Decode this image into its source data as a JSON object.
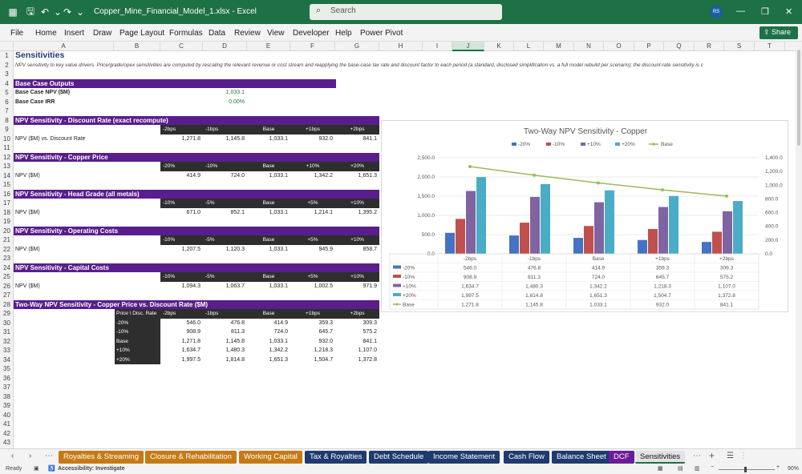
{
  "window": {
    "file_name": "Copper_Mine_Financial_Model_1.xlsx",
    "app_name": "Excel",
    "search_placeholder": "Search",
    "user_initials": "RS"
  },
  "ribbon": {
    "tabs": [
      "File",
      "Home",
      "Insert",
      "Draw",
      "Page Layout",
      "Formulas",
      "Data",
      "Review",
      "View",
      "Developer",
      "Help",
      "Power Pivot"
    ],
    "share_label": "Share"
  },
  "columns": [
    "A",
    "B",
    "C",
    "D",
    "E",
    "F",
    "G",
    "H",
    "I",
    "J",
    "K",
    "L",
    "M",
    "N",
    "O",
    "P",
    "Q",
    "R",
    "S",
    "T"
  ],
  "selected_column": "J",
  "row_count": 43,
  "sheet": {
    "title": "Sensitivities",
    "note": "NPV sensitivity to key value drivers. Price/grade/opex sensitivities are computed by rescaling the relevant revenue or cost stream and reapplying the base-case tax rate and discount factor to each period (a standard, disclosed simplification vs. a full model rebuild per scenario); the discount-rate sensitivity is c",
    "base_case_header": "Base Case Outputs",
    "base_npv_label": "Base Case NPV ($M)",
    "base_npv_value": "1,033.1",
    "base_irr_label": "Base Case IRR",
    "base_irr_value": "0.00%",
    "sensitivities": [
      {
        "title": "NPV Sensitivity - Discount Rate (exact recompute)",
        "headers": [
          "-2bps",
          "-1bps",
          "Base",
          "+1bps",
          "+2bps"
        ],
        "label": "NPV ($M) vs. Discount Rate",
        "values": [
          "1,271.8",
          "1,145.8",
          "1,033.1",
          "932.0",
          "841.1"
        ]
      },
      {
        "title": "NPV Sensitivity - Copper Price",
        "headers": [
          "-20%",
          "-10%",
          "Base",
          "+10%",
          "+20%"
        ],
        "label": "NPV ($M)",
        "values": [
          "414.9",
          "724.0",
          "1,033.1",
          "1,342.2",
          "1,651.3"
        ]
      },
      {
        "title": "NPV Sensitivity - Head Grade (all metals)",
        "headers": [
          "-10%",
          "-5%",
          "Base",
          "+5%",
          "+10%"
        ],
        "label": "NPV ($M)",
        "values": [
          "671.0",
          "852.1",
          "1,033.1",
          "1,214.1",
          "1,395.2"
        ]
      },
      {
        "title": "NPV Sensitivity - Operating Costs",
        "headers": [
          "-10%",
          "-5%",
          "Base",
          "+5%",
          "+10%"
        ],
        "label": "NPV ($M)",
        "values": [
          "1,207.5",
          "1,120.3",
          "1,033.1",
          "945.9",
          "858.7"
        ]
      },
      {
        "title": "NPV Sensitivity - Capital Costs",
        "headers": [
          "-10%",
          "-5%",
          "Base",
          "+5%",
          "+10%"
        ],
        "label": "NPV ($M)",
        "values": [
          "1,094.3",
          "1,063.7",
          "1,033.1",
          "1,002.5",
          "971.9"
        ]
      }
    ],
    "two_way": {
      "title": "Two-Way NPV Sensitivity - Copper Price vs. Discount Rate ($M)",
      "corner": "Price \\ Disc. Rate",
      "headers": [
        "-2bps",
        "-1bps",
        "Base",
        "+1bps",
        "+2bps"
      ],
      "rows": [
        {
          "label": "-20%",
          "values": [
            "546.0",
            "476.8",
            "414.9",
            "359.3",
            "309.3"
          ]
        },
        {
          "label": "-10%",
          "values": [
            "908.9",
            "811.3",
            "724.0",
            "645.7",
            "575.2"
          ]
        },
        {
          "label": "Base",
          "values": [
            "1,271.8",
            "1,145.8",
            "1,033.1",
            "932.0",
            "841.1"
          ]
        },
        {
          "label": "+10%",
          "values": [
            "1,634.7",
            "1,480.3",
            "1,342.2",
            "1,218.3",
            "1,107.0"
          ]
        },
        {
          "label": "+20%",
          "values": [
            "1,997.5",
            "1,814.8",
            "1,651.3",
            "1,504.7",
            "1,372.8"
          ]
        }
      ]
    }
  },
  "chart_data": {
    "type": "bar",
    "title": "Two-Way NPV Sensitivity - Copper",
    "categories": [
      "-2bps",
      "-1bps",
      "Base",
      "+1bps",
      "+2bps"
    ],
    "series": [
      {
        "name": "-20%",
        "kind": "bar",
        "color": "#4472c4",
        "values": [
          546.0,
          476.8,
          414.9,
          359.3,
          309.3
        ],
        "labels": [
          "546.0",
          "476.8",
          "414.9",
          "359.3",
          "309.3"
        ]
      },
      {
        "name": "-10%",
        "kind": "bar",
        "color": "#c0504d",
        "values": [
          908.9,
          811.3,
          724.0,
          645.7,
          575.2
        ],
        "labels": [
          "908.9",
          "811.3",
          "724.0",
          "645.7",
          "575.2"
        ]
      },
      {
        "name": "+10%",
        "kind": "bar",
        "color": "#8064a2",
        "values": [
          1634.7,
          1480.3,
          1342.2,
          1218.3,
          1107.0
        ],
        "labels": [
          "1,634.7",
          "1,480.3",
          "1,342.2",
          "1,218.3",
          "1,107.0"
        ]
      },
      {
        "name": "+20%",
        "kind": "bar",
        "color": "#4bacc6",
        "values": [
          1997.5,
          1814.8,
          1651.3,
          1504.7,
          1372.8
        ],
        "labels": [
          "1,997.5",
          "1,814.8",
          "1,651.3",
          "1,504.7",
          "1,372.8"
        ]
      },
      {
        "name": "Base",
        "kind": "line",
        "axis": "secondary",
        "color": "#9bbb59",
        "values": [
          1271.8,
          1145.8,
          1033.1,
          932.0,
          841.1
        ],
        "labels": [
          "1,271.8",
          "1,145.8",
          "1,033.1",
          "932.0",
          "841.1"
        ]
      }
    ],
    "ylim": [
      0,
      2500
    ],
    "yticks": [
      "2,500.0",
      "2,000.0",
      "1,500.0",
      "1,000.0",
      "500.0",
      "0.0"
    ],
    "y2lim": [
      0,
      1400
    ],
    "y2ticks": [
      "1,400.0",
      "1,200.0",
      "1,000.0",
      "800.0",
      "600.0",
      "400.0",
      "200.0",
      "0.0"
    ],
    "legend_position": "top",
    "data_table": true,
    "grid": true
  },
  "sheet_tabs": [
    {
      "label": "Royalties & Streaming",
      "color": "#c57a14"
    },
    {
      "label": "Closure & Rehabilitation",
      "color": "#c57a14"
    },
    {
      "label": "Working Capital",
      "color": "#c57a14"
    },
    {
      "label": "Tax & Royalties",
      "color": "#1f3b6e"
    },
    {
      "label": "Debt Schedule",
      "color": "#1f3b6e"
    },
    {
      "label": "Income Statement",
      "color": "#1f3b6e"
    },
    {
      "label": "Cash Flow",
      "color": "#1f3b6e"
    },
    {
      "label": "Balance Sheet",
      "color": "#1f3b6e"
    },
    {
      "label": "DCF",
      "color": "#6a1b9a"
    },
    {
      "label": "Sensitivities",
      "color": "#e3e3e3",
      "active": true
    }
  ],
  "status": {
    "ready": "Ready",
    "accessibility": "Accessibility: Investigate",
    "zoom": "90%"
  }
}
